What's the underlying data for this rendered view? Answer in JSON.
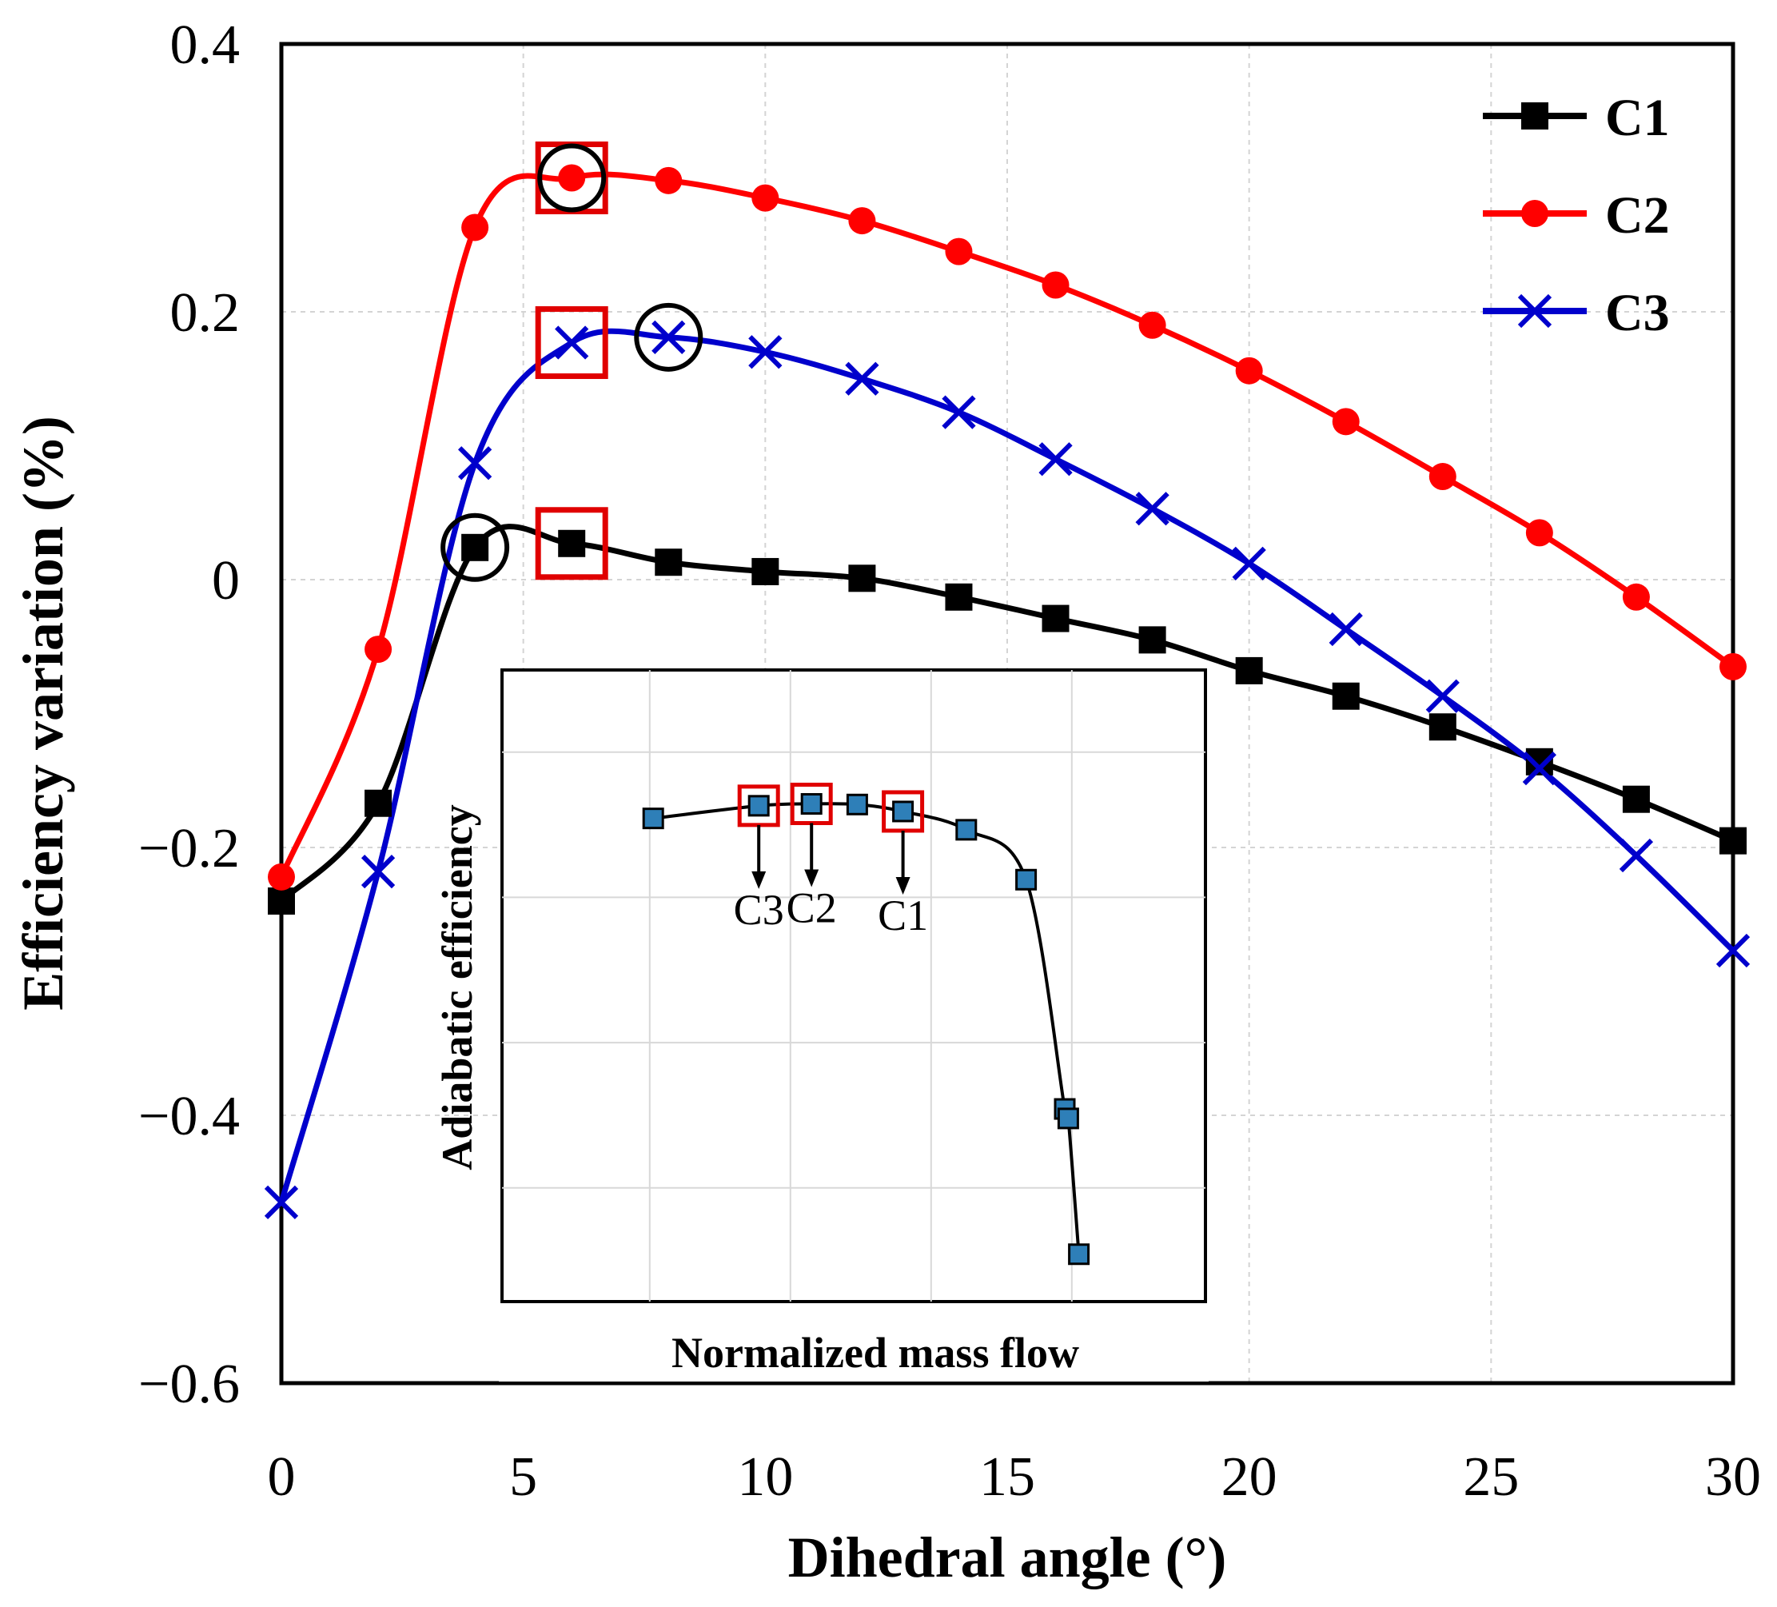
{
  "chart_data": {
    "type": "line",
    "xlabel": "Dihedral angle (°)",
    "ylabel": "Efficiency variation (%)",
    "xlim": [
      0,
      30
    ],
    "ylim": [
      -0.6,
      0.4
    ],
    "xticks": [
      "0",
      "5",
      "10",
      "15",
      "20",
      "25",
      "30"
    ],
    "yticks": [
      "0.4",
      "0.2",
      "0",
      "−0.2",
      "−0.4",
      "−0.6"
    ],
    "grid": true,
    "legend_position": "top-right",
    "x": [
      0,
      2,
      4,
      6,
      8,
      10,
      12,
      14,
      16,
      18,
      20,
      22,
      24,
      26,
      28,
      30
    ],
    "series": [
      {
        "name": "C1",
        "color": "#000000",
        "marker": "square",
        "values": [
          -0.24,
          -0.167,
          0.024,
          0.027,
          0.013,
          0.006,
          0.001,
          -0.013,
          -0.029,
          -0.045,
          -0.068,
          -0.087,
          -0.11,
          -0.136,
          -0.164,
          -0.195
        ]
      },
      {
        "name": "C2",
        "color": "#ff0000",
        "marker": "circle",
        "values": [
          -0.222,
          -0.052,
          0.263,
          0.3,
          0.298,
          0.285,
          0.268,
          0.245,
          0.22,
          0.19,
          0.156,
          0.118,
          0.077,
          0.035,
          -0.013,
          -0.065
        ]
      },
      {
        "name": "C3",
        "color": "#0000cc",
        "marker": "x",
        "values": [
          -0.465,
          -0.218,
          0.087,
          0.177,
          0.181,
          0.17,
          0.15,
          0.125,
          0.09,
          0.053,
          0.012,
          -0.037,
          -0.087,
          -0.141,
          -0.206,
          -0.277
        ]
      }
    ],
    "highlights": {
      "squares": [
        {
          "series": "C1",
          "x": 6
        },
        {
          "series": "C2",
          "x": 6
        },
        {
          "series": "C3",
          "x": 6
        }
      ],
      "circles": [
        {
          "series": "C1",
          "x": 4
        },
        {
          "series": "C2",
          "x": 6
        },
        {
          "series": "C3",
          "x": 8
        }
      ]
    },
    "inset": {
      "xlabel": "Normalized mass flow",
      "ylabel": "Adiabatic efficiency",
      "xlim": [
        0,
        1
      ],
      "ylim": [
        0,
        1
      ],
      "x": [
        0.215,
        0.365,
        0.44,
        0.505,
        0.57,
        0.66,
        0.745,
        0.8,
        0.805,
        0.82
      ],
      "y": [
        0.765,
        0.785,
        0.788,
        0.787,
        0.776,
        0.747,
        0.668,
        0.305,
        0.29,
        0.075
      ],
      "marker_color": "#2e7fb8",
      "annotations": [
        {
          "label": "C3",
          "x": 0.365,
          "y": 0.785
        },
        {
          "label": "C2",
          "x": 0.44,
          "y": 0.788
        },
        {
          "label": "C1",
          "x": 0.57,
          "y": 0.776
        }
      ]
    }
  }
}
